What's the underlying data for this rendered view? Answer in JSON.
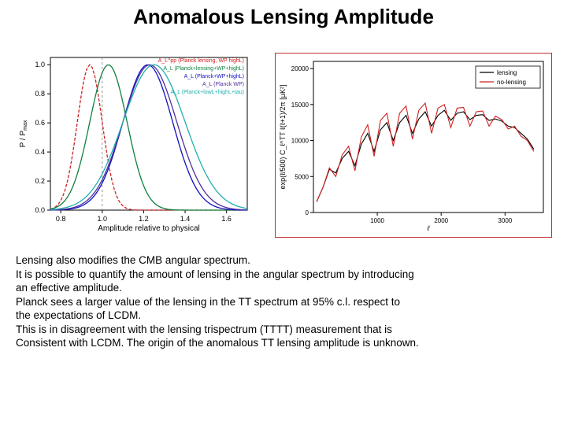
{
  "title": "Anomalous Lensing Amplitude",
  "left_chart": {
    "type": "line",
    "xlabel": "Amplitude relative to physical",
    "ylabel": "P / P_max",
    "xlim": [
      0.75,
      1.7
    ],
    "ylim": [
      0,
      1.05
    ],
    "xticks": [
      0.8,
      1.0,
      1.2,
      1.4,
      1.6
    ],
    "yticks": [
      0.0,
      0.2,
      0.4,
      0.6,
      0.8,
      1.0
    ],
    "label_fontsize": 10,
    "tick_fontsize": 9,
    "line_width": 1.3,
    "grid": false,
    "vline_x": 1.0,
    "vline_color": "#999999",
    "vline_dash": "3,3",
    "series": [
      {
        "label": "A_L^pp (Planck lensing, WP highL)",
        "color": "#d02020",
        "dash": "4,2",
        "mu": 0.94,
        "sigma": 0.06
      },
      {
        "label": "A_L (Planck+lensing+WP+highL)",
        "color": "#108040",
        "dash": "none",
        "mu": 1.03,
        "sigma": 0.09
      },
      {
        "label": "A_L (Planck+WP+highL)",
        "color": "#1010c0",
        "dash": "none",
        "mu": 1.22,
        "sigma": 0.12
      },
      {
        "label": "A_L (Planck WP)",
        "color": "#5030a0",
        "dash": "none",
        "mu": 1.23,
        "sigma": 0.13
      },
      {
        "label": "A_L (Planck+lowL+highL+tau)",
        "color": "#20b0b0",
        "dash": "none",
        "mu": 1.25,
        "sigma": 0.15
      }
    ]
  },
  "right_chart": {
    "type": "line",
    "xlabel": "ℓ",
    "ylabel": "exp(ℓ/500) C_ℓ^TT ℓ(ℓ+1)/2π [μK²]",
    "xlim": [
      0,
      3600
    ],
    "ylim": [
      0,
      21000
    ],
    "xticks": [
      1000,
      2000,
      3000
    ],
    "yticks": [
      0,
      5000,
      10000,
      15000,
      20000
    ],
    "label_fontsize": 9,
    "tick_fontsize": 8,
    "line_width": 1.1,
    "legend_box": true,
    "legend_border": "#000000",
    "series": [
      {
        "label": "lensing",
        "color": "#000000",
        "x": [
          50,
          150,
          250,
          350,
          450,
          550,
          650,
          750,
          850,
          950,
          1050,
          1150,
          1250,
          1350,
          1450,
          1550,
          1650,
          1750,
          1850,
          1950,
          2050,
          2150,
          2250,
          2350,
          2450,
          2550,
          2650,
          2750,
          2850,
          2950,
          3050,
          3150,
          3250,
          3350,
          3450
        ],
        "y": [
          1500,
          3500,
          6000,
          5500,
          7500,
          8500,
          6500,
          9500,
          11000,
          8500,
          11500,
          12500,
          10000,
          12500,
          13500,
          11000,
          13000,
          14000,
          12000,
          13500,
          14200,
          12800,
          13800,
          14000,
          12900,
          13500,
          13600,
          12800,
          13000,
          12700,
          12000,
          11800,
          11000,
          10200,
          8800
        ]
      },
      {
        "label": "no-lensing",
        "color": "#d02020",
        "x": [
          50,
          150,
          250,
          350,
          450,
          550,
          650,
          750,
          850,
          950,
          1050,
          1150,
          1250,
          1350,
          1450,
          1550,
          1650,
          1750,
          1850,
          1950,
          2050,
          2150,
          2250,
          2350,
          2450,
          2550,
          2650,
          2750,
          2850,
          2950,
          3050,
          3150,
          3250,
          3350,
          3450
        ],
        "y": [
          1500,
          3500,
          6200,
          5000,
          8000,
          9200,
          5800,
          10500,
          12200,
          7800,
          12800,
          13800,
          9200,
          13800,
          14800,
          10200,
          14200,
          15200,
          11000,
          14500,
          15000,
          11800,
          14500,
          14600,
          12000,
          14000,
          14100,
          12000,
          13400,
          12900,
          11600,
          12000,
          10600,
          10000,
          8500
        ]
      }
    ]
  },
  "body_text": {
    "l1": "Lensing also modifies the CMB angular spectrum.",
    "l2": "It is possible to quantify the amount of lensing in the angular spectrum by introducing",
    "l3": "an effective amplitude.",
    "l4": "Planck sees a larger value of the lensing in the TT spectrum at 95% c.l. respect to",
    "l5": "the expectations of LCDM.",
    "l6": "This is in disagreement with the lensing trispectrum (TTTT) measurement that is",
    "l7": "Consistent with LCDM. The origin of the anomalous TT lensing amplitude is unknown."
  }
}
